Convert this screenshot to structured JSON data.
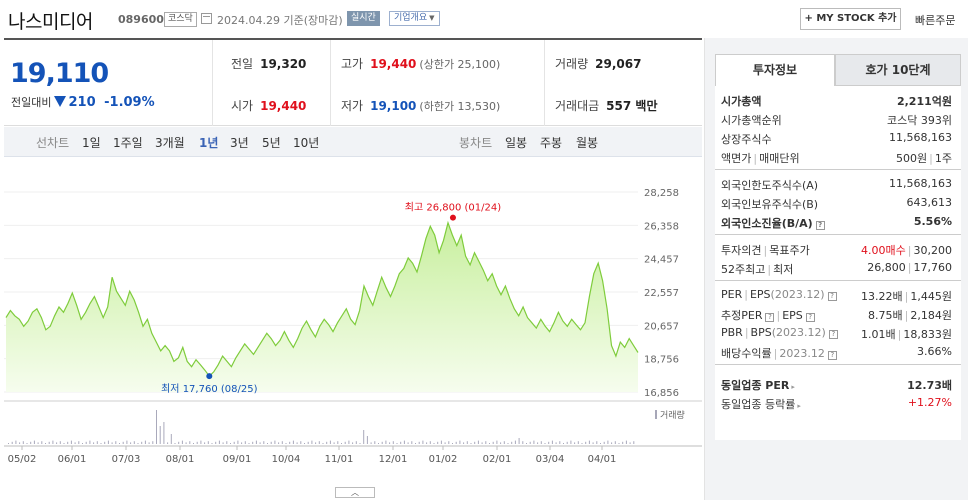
{
  "header": {
    "stock_name": "나스미디어",
    "stock_code": "089600",
    "market": "코스닥",
    "date": "2024.04.29 기준(장마감)",
    "realtime": "실시간",
    "company_info": "기업개요",
    "mystock_label": "+ MY STOCK 추가",
    "order_label": "빠른주문"
  },
  "price": {
    "current": "19,110",
    "change_label": "전일대비",
    "change_amount": "210",
    "change_percent": "-1.09%"
  },
  "summary": {
    "prev_label": "전일",
    "prev_value": "19,320",
    "high_label": "고가",
    "high_value": "19,440",
    "upper_limit": "(상한가 25,100)",
    "volume_label": "거래량",
    "volume_value": "29,067",
    "open_label": "시가",
    "open_value": "19,440",
    "low_label": "저가",
    "low_value": "19,100",
    "lower_limit": "(하한가 13,530)",
    "amount_label": "거래대금",
    "amount_value": "557 백만"
  },
  "chart_tabs": {
    "line_chart": "선차트",
    "periods": [
      "1일",
      "1주일",
      "3개월",
      "1년",
      "3년",
      "5년",
      "10년"
    ],
    "active_period": "1년",
    "candle_chart": "봉차트",
    "candle_periods": [
      "일봉",
      "주봉",
      "월봉"
    ]
  },
  "chart_data": {
    "type": "area",
    "y_ticks": [
      "28,258",
      "26,358",
      "24,457",
      "22,557",
      "20,657",
      "18,756",
      "16,856"
    ],
    "y_values": [
      28258,
      26358,
      24457,
      22557,
      20657,
      18756,
      16856
    ],
    "x_labels": [
      "05/02",
      "06/01",
      "07/03",
      "08/01",
      "09/01",
      "10/04",
      "11/01",
      "12/01",
      "01/02",
      "02/01",
      "03/04",
      "04/01"
    ],
    "ylim": [
      16856,
      28258
    ],
    "max_label": "최고 26,800 (01/24)",
    "max_value": 26800,
    "min_label": "최저 17,760 (08/25)",
    "min_value": 17760,
    "volume_legend": "거래량",
    "series": [
      {
        "values": [
          21100,
          21500,
          21200,
          21000,
          20600,
          20900,
          21400,
          21600,
          21100,
          20400,
          20600,
          21200,
          21700,
          21400,
          21900,
          22500,
          21800,
          21000,
          21400,
          21900,
          22300,
          21700,
          21100,
          21700,
          23400,
          22600,
          22200,
          21800,
          22600,
          22100,
          21400,
          20600,
          21000,
          20200,
          19700,
          19200,
          19500,
          19200,
          18600,
          18800,
          19400,
          18600,
          18300,
          18700,
          18400,
          18100,
          17760,
          18000,
          18400,
          18900,
          18600,
          18300,
          18800,
          19200,
          19600,
          19300,
          19000,
          19400,
          19800,
          20200,
          19900,
          19500,
          19800,
          20300,
          19800,
          19400,
          19900,
          20500,
          20900,
          20400,
          20000,
          20600,
          21000,
          20700,
          20300,
          20800,
          21200,
          21600,
          21000,
          20700,
          21500,
          22900,
          22300,
          21800,
          22600,
          23400,
          22800,
          22300,
          22900,
          23600,
          23900,
          24500,
          24200,
          23700,
          24600,
          25600,
          26300,
          25800,
          24800,
          25500,
          26500,
          25800,
          25200,
          25800,
          24600,
          24100,
          24800,
          24300,
          23800,
          23200,
          23600,
          22900,
          22400,
          22900,
          22200,
          21600,
          21200,
          21700,
          21100,
          20800,
          20500,
          21000,
          20600,
          20300,
          20800,
          21400,
          20900,
          20600,
          21000,
          20700,
          20400,
          20800,
          22300,
          23600,
          24200,
          23200,
          21600,
          19500,
          18900,
          19700,
          19400,
          19900,
          19500,
          19110
        ]
      }
    ]
  },
  "right_panel": {
    "tab_invest": "투자정보",
    "tab_hoga": "호가 10단계",
    "market_cap_label": "시가총액",
    "market_cap_value": "2,211억원",
    "rank_label": "시가총액순위",
    "rank_value": "코스닥 393위",
    "listed_label": "상장주식수",
    "listed_value": "11,568,163",
    "par_label": "액면가",
    "unit_label": "매매단위",
    "par_value": "500원",
    "unit_value": "1주",
    "foreign_limit_label": "외국인한도주식수(A)",
    "foreign_limit_value": "11,568,163",
    "foreign_hold_label": "외국인보유주식수(B)",
    "foreign_hold_value": "643,613",
    "foreign_ratio_label": "외국인소진율(B/A)",
    "foreign_ratio_value": "5.56%",
    "opinion_label": "투자의견",
    "target_label": "목표주가",
    "opinion_value": "4.00매수",
    "target_value": "30,200",
    "week52_label": "52주최고",
    "week52_low_label": "최저",
    "week52_high": "26,800",
    "week52_low": "17,760",
    "per_label": "PER",
    "eps_label": "EPS",
    "per_year": "(2023.12)",
    "per_value": "13.22배",
    "eps_value": "1,445원",
    "est_per_label": "추정PER",
    "est_eps_label": "EPS",
    "est_per_value": "8.75배",
    "est_eps_value": "2,184원",
    "pbr_label": "PBR",
    "bps_label": "BPS",
    "pbr_year": "(2023.12)",
    "pbr_value": "1.01배",
    "bps_value": "18,833원",
    "div_label": "배당수익률",
    "div_year": "2023.12",
    "div_value": "3.66%",
    "sector_per_label": "동일업종 PER",
    "sector_per_value": "12.73배",
    "sector_rate_label": "동일업종 등락률",
    "sector_rate_value": "+1.27%"
  }
}
